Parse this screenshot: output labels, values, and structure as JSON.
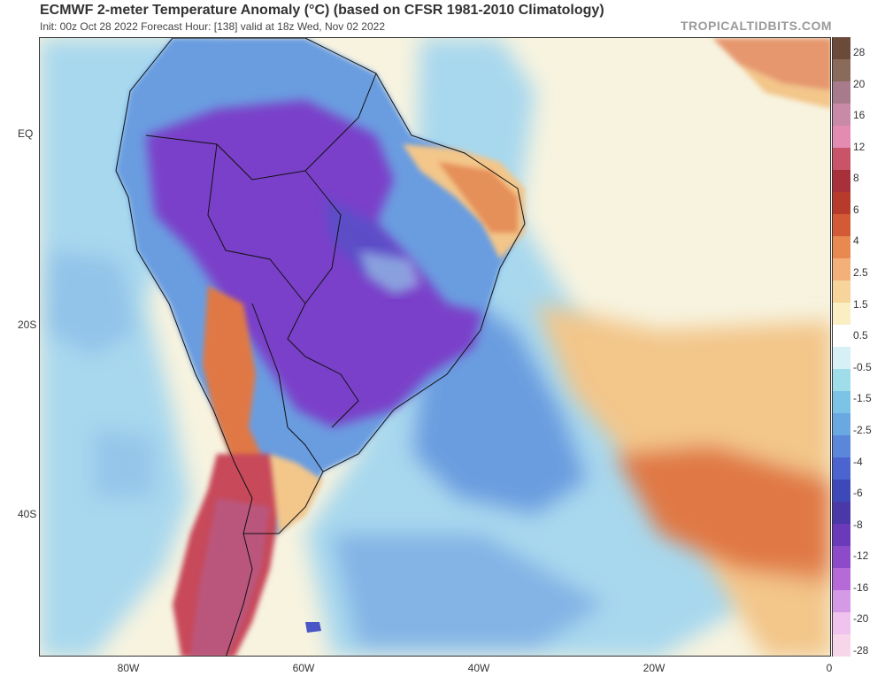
{
  "header": {
    "title": "ECMWF 2-meter Temperature Anomaly (°C) (based on CFSR 1981-2010 Climatology)",
    "subtitle": "Init: 00z Oct 28 2022   Forecast Hour: [138]   valid at 18z Wed, Nov 02 2022",
    "brand": "TROPICALTIDBITS.COM"
  },
  "map": {
    "lat_labels": [
      "EQ",
      "20S",
      "40S"
    ],
    "lon_labels": [
      "80W",
      "60W",
      "40W",
      "20W",
      "0"
    ],
    "colors": {
      "ocean_neutral": "#f7f3df",
      "cool": "#a8d8ee",
      "cold": "#6b9de0",
      "very_cold": "#4a56c6",
      "extreme_cold": "#7a3fc9",
      "warm": "#f3c68a",
      "hot": "#e07845",
      "very_hot": "#c74a5a",
      "extreme_hot": "#b85a85",
      "border_line": "#111111"
    }
  },
  "colorbar": {
    "labels": [
      "28",
      "20",
      "16",
      "12",
      "8",
      "6",
      "4",
      "2.5",
      "1.5",
      "0.5",
      "-0.5",
      "-1.5",
      "-2.5",
      "-4",
      "-6",
      "-8",
      "-12",
      "-16",
      "-20",
      "-28"
    ],
    "colors": [
      "#6b4a3a",
      "#8a6a5a",
      "#a77a8c",
      "#c98aa8",
      "#e38bb0",
      "#c9546a",
      "#a8303a",
      "#b83a2a",
      "#d45a35",
      "#e88a50",
      "#f3b078",
      "#f6d49a",
      "#f9efc2",
      "#ffffff",
      "#d6f0f6",
      "#9edde9",
      "#7cc3e8",
      "#6aa8e2",
      "#5b87db",
      "#4b64cf",
      "#3d49b8",
      "#4a38a8",
      "#6a3ab8",
      "#8d4ac9",
      "#b56ad8",
      "#d49ae6",
      "#f0c2ee",
      "#f6d6e8"
    ]
  }
}
